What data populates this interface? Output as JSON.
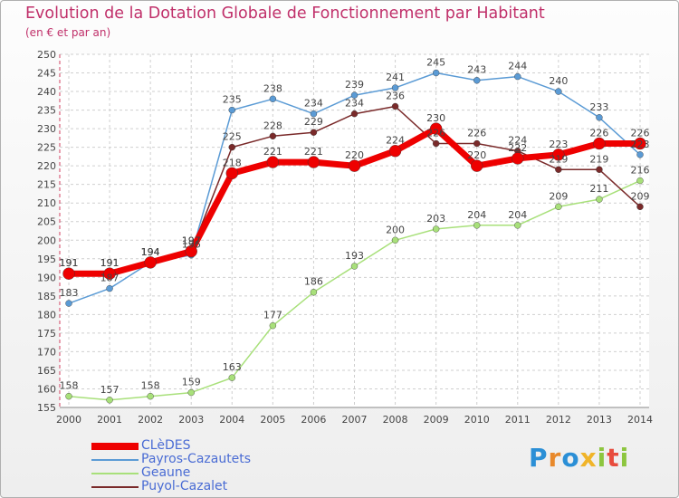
{
  "title": "Evolution de la Dotation Globale de Fonctionnement par Habitant",
  "subtitle": "(en € et par an)",
  "logo": {
    "text": "Proxiti",
    "colors": [
      "#2b8fd6",
      "#e8892b",
      "#2b8fd6",
      "#f0b429",
      "#8dc63f",
      "#e84c3d",
      "#8dc63f"
    ]
  },
  "colors": {
    "cledes": "#ee0000",
    "payros": "#5b9bd5",
    "geaune": "#a8e07a",
    "puyol": "#7a2a2a",
    "title": "#c0306a",
    "legend_text": "#4a6cd4"
  },
  "chart_data": {
    "type": "line",
    "title": "Evolution de la Dotation Globale de Fonctionnement par Habitant",
    "subtitle": "(en € et par an)",
    "x": [
      "2000",
      "2001",
      "2002",
      "2003",
      "2004",
      "2005",
      "2006",
      "2007",
      "2008",
      "2009",
      "2010",
      "2011",
      "2012",
      "2013",
      "2014"
    ],
    "yticks": [
      155,
      160,
      165,
      170,
      175,
      180,
      185,
      190,
      195,
      200,
      205,
      210,
      215,
      220,
      225,
      230,
      235,
      240,
      245,
      250
    ],
    "ylim": [
      155,
      250
    ],
    "grid": true,
    "series": [
      {
        "key": "payros",
        "name": "Payros-Cazautets",
        "values": [
          183,
          187,
          194,
          196,
          235,
          238,
          234,
          239,
          241,
          245,
          243,
          244,
          240,
          233,
          223
        ],
        "labels": [
          "183",
          "187",
          "194",
          "196",
          "235",
          "238",
          "234",
          "239",
          "241",
          "245",
          "243",
          "244",
          "240",
          "233",
          "223"
        ]
      },
      {
        "key": "geaune",
        "name": "Geaune",
        "values": [
          158,
          157,
          158,
          159,
          163,
          177,
          186,
          193,
          200,
          203,
          204,
          204,
          209,
          211,
          216
        ],
        "labels": [
          "158",
          "157",
          "158",
          "159",
          "163",
          "177",
          "186",
          "193",
          "200",
          "203",
          "204",
          "204",
          "209",
          "211",
          "216"
        ]
      },
      {
        "key": "puyol",
        "name": "Puyol-Cazalet",
        "values": [
          191,
          191,
          194,
          197,
          225,
          228,
          229,
          234,
          236,
          226,
          226,
          224,
          219,
          219,
          209
        ],
        "labels": [
          "191",
          "191",
          "194",
          "197",
          "225",
          "228",
          "229",
          "234",
          "236",
          "226",
          "226",
          "224",
          "219",
          "219",
          "209"
        ]
      },
      {
        "key": "cledes",
        "name": "CLèDES",
        "values": [
          191,
          191,
          194,
          197,
          218,
          221,
          221,
          220,
          224,
          230,
          220,
          222,
          223,
          226,
          226
        ],
        "labels": [
          "191",
          "191",
          "194",
          "197",
          "218",
          "221",
          "221",
          "220",
          "224",
          "230",
          "220",
          "222",
          "223",
          "226",
          "226"
        ]
      }
    ],
    "legend": [
      "CLèDES",
      "Payros-Cazautets",
      "Geaune",
      "Puyol-Cazalet"
    ]
  }
}
